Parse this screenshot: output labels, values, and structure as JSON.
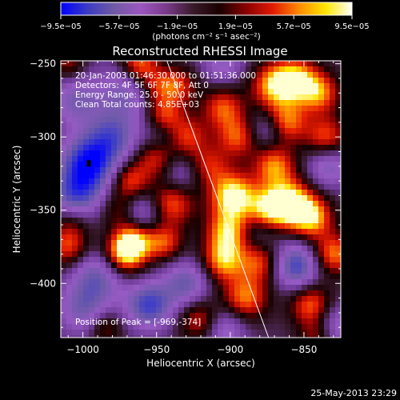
{
  "chart_data": {
    "type": "heatmap",
    "title": "Reconstructed RHESSI Image",
    "xlabel": "Heliocentric X (arcsec)",
    "ylabel": "Heliocentric Y (arcsec)",
    "xlim": [
      -1015,
      -825
    ],
    "ylim": [
      -437,
      -248
    ],
    "x_ticks": [
      {
        "value": -1000,
        "label": "−1000"
      },
      {
        "value": -950,
        "label": "−950"
      },
      {
        "value": -900,
        "label": "−900"
      },
      {
        "value": -850,
        "label": "−850"
      }
    ],
    "y_ticks": [
      {
        "value": -250,
        "label": "−250"
      },
      {
        "value": -300,
        "label": "−300"
      },
      {
        "value": -350,
        "label": "−350"
      },
      {
        "value": -400,
        "label": "−400"
      }
    ],
    "colorbar": {
      "range": [
        -9.5e-05,
        9.5e-05
      ],
      "ticks": [
        {
          "value": -9.5e-05,
          "label": "−9.5e−05"
        },
        {
          "value": -5.7e-05,
          "label": "−5.7e−05"
        },
        {
          "value": -1.9e-05,
          "label": "−1.9e−05"
        },
        {
          "value": 1.9e-05,
          "label": "1.9e−05"
        },
        {
          "value": 5.7e-05,
          "label": "5.7e−05"
        },
        {
          "value": 9.5e-05,
          "label": "9.5e−05"
        }
      ],
      "units": "(photons cm⁻² s⁻¹ asec⁻²)",
      "colors": [
        "#0000ff",
        "#3b3bc4",
        "#6f5aa4",
        "#9b57c0",
        "#7a3a8a",
        "#3a1a2a",
        "#1a0000",
        "#8a0000",
        "#e11a00",
        "#ff8a00",
        "#ffe600",
        "#ffffff"
      ]
    },
    "annotations": [
      "20-Jan-2003 01:46:30.000 to 01:51:36.000",
      "Detectors: 4F 5F 6F 7F 8F, Att 0",
      "Energy Range: 25.0 - 50.0 keV",
      "Clean    Total counts: 4.85E+03"
    ],
    "peak_label": "Position of Peak = [-969,-374]",
    "peak": [
      -969,
      -374
    ],
    "limb_line": [
      [
        -943,
        -248
      ],
      [
        -874,
        -437
      ]
    ],
    "blobs": [
      {
        "x": -996,
        "y": -318,
        "v": -1.0,
        "r": 13
      },
      {
        "x": -1005,
        "y": -340,
        "v": -0.7,
        "r": 12
      },
      {
        "x": -980,
        "y": -300,
        "v": -0.6,
        "r": 12
      },
      {
        "x": -970,
        "y": -270,
        "v": -0.5,
        "r": 14
      },
      {
        "x": -1005,
        "y": -275,
        "v": -0.5,
        "r": 12
      },
      {
        "x": -990,
        "y": -395,
        "v": -0.6,
        "r": 13
      },
      {
        "x": -1000,
        "y": -418,
        "v": -0.5,
        "r": 12
      },
      {
        "x": -955,
        "y": -415,
        "v": -0.8,
        "r": 11
      },
      {
        "x": -930,
        "y": -400,
        "v": -0.6,
        "r": 11
      },
      {
        "x": -960,
        "y": -352,
        "v": -0.5,
        "r": 11
      },
      {
        "x": -935,
        "y": -325,
        "v": -0.4,
        "r": 11
      },
      {
        "x": -905,
        "y": -430,
        "v": -0.5,
        "r": 11
      },
      {
        "x": -855,
        "y": -388,
        "v": -0.8,
        "r": 11
      },
      {
        "x": -832,
        "y": -430,
        "v": -0.6,
        "r": 11
      },
      {
        "x": -885,
        "y": -365,
        "v": -0.4,
        "r": 11
      },
      {
        "x": -833,
        "y": -320,
        "v": -0.5,
        "r": 10
      },
      {
        "x": -875,
        "y": -295,
        "v": -0.4,
        "r": 9
      },
      {
        "x": -905,
        "y": -250,
        "v": -0.4,
        "r": 10
      },
      {
        "x": -945,
        "y": -300,
        "v": -0.3,
        "r": 10
      },
      {
        "x": -1010,
        "y": -375,
        "v": 0.6,
        "r": 10
      },
      {
        "x": -1008,
        "y": -357,
        "v": 0.3,
        "r": 9
      },
      {
        "x": -972,
        "y": -380,
        "v": 0.9,
        "r": 10
      },
      {
        "x": -965,
        "y": -370,
        "v": 0.7,
        "r": 9
      },
      {
        "x": -968,
        "y": -330,
        "v": 0.6,
        "r": 9
      },
      {
        "x": -975,
        "y": -350,
        "v": 0.4,
        "r": 9
      },
      {
        "x": -962,
        "y": -250,
        "v": 0.7,
        "r": 9
      },
      {
        "x": -950,
        "y": -265,
        "v": 0.5,
        "r": 9
      },
      {
        "x": -945,
        "y": -285,
        "v": 0.6,
        "r": 9
      },
      {
        "x": -935,
        "y": -265,
        "v": 0.5,
        "r": 9
      },
      {
        "x": -950,
        "y": -315,
        "v": 0.6,
        "r": 10
      },
      {
        "x": -940,
        "y": -345,
        "v": 0.7,
        "r": 11
      },
      {
        "x": -945,
        "y": -372,
        "v": 0.6,
        "r": 9
      },
      {
        "x": -930,
        "y": -300,
        "v": 0.6,
        "r": 10
      },
      {
        "x": -915,
        "y": -320,
        "v": 0.5,
        "r": 10
      },
      {
        "x": -905,
        "y": -280,
        "v": 0.6,
        "r": 10
      },
      {
        "x": -895,
        "y": -300,
        "v": 0.6,
        "r": 10
      },
      {
        "x": -898,
        "y": -340,
        "v": 0.95,
        "r": 11
      },
      {
        "x": -900,
        "y": -365,
        "v": 0.9,
        "r": 11
      },
      {
        "x": -905,
        "y": -385,
        "v": 0.7,
        "r": 10
      },
      {
        "x": -890,
        "y": -410,
        "v": 0.7,
        "r": 11
      },
      {
        "x": -880,
        "y": -385,
        "v": 0.6,
        "r": 10
      },
      {
        "x": -870,
        "y": -265,
        "v": 0.8,
        "r": 11
      },
      {
        "x": -855,
        "y": -260,
        "v": 0.7,
        "r": 10
      },
      {
        "x": -862,
        "y": -290,
        "v": 0.7,
        "r": 10
      },
      {
        "x": -870,
        "y": -320,
        "v": 0.7,
        "r": 10
      },
      {
        "x": -860,
        "y": -345,
        "v": 0.95,
        "r": 11
      },
      {
        "x": -875,
        "y": -350,
        "v": 0.7,
        "r": 10
      },
      {
        "x": -845,
        "y": -355,
        "v": 0.8,
        "r": 10
      },
      {
        "x": -840,
        "y": -270,
        "v": 0.7,
        "r": 10
      },
      {
        "x": -835,
        "y": -300,
        "v": 0.6,
        "r": 10
      },
      {
        "x": -830,
        "y": -380,
        "v": 0.7,
        "r": 10
      },
      {
        "x": -845,
        "y": -415,
        "v": 0.7,
        "r": 10
      },
      {
        "x": -840,
        "y": -435,
        "v": 0.6,
        "r": 9
      },
      {
        "x": -920,
        "y": -425,
        "v": 0.6,
        "r": 10
      },
      {
        "x": -1010,
        "y": -250,
        "v": 0.4,
        "r": 8
      },
      {
        "x": -985,
        "y": -430,
        "v": 0.4,
        "r": 8
      }
    ]
  },
  "footer": {
    "timestamp": "25-May-2013 23:29"
  }
}
